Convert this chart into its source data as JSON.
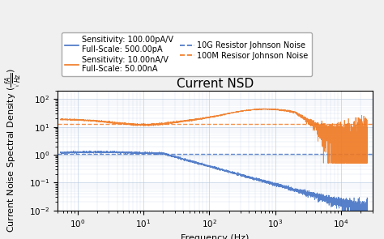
{
  "title": "Current NSD",
  "xlabel": "Frequency (Hz)",
  "ylabel": "Current Noise Spectral Density ($\\frac{fA}{\\sqrt{Hz}}$)",
  "xlim": [
    0.5,
    30000
  ],
  "ylim": [
    0.01,
    200
  ],
  "blue_label1": "Sensitivity: 100.00pA/V",
  "blue_label2": "Full-Scale: 500.00pA",
  "orange_label1": "Sensitivity: 10.00nA/V",
  "orange_label2": "Full-Scale: 50.00nA",
  "blue_dashed_label": "10G Resistor Johnson Noise",
  "orange_dashed_label": "100M Resisor Johnson Noise",
  "blue_dashed_value": 1.1,
  "orange_dashed_value": 12.5,
  "blue_color": "#4472c4",
  "orange_color": "#f07820",
  "grid_color": "#b0c4de",
  "title_fontsize": 11,
  "label_fontsize": 8,
  "legend_fontsize": 7,
  "tick_fontsize": 7.5
}
